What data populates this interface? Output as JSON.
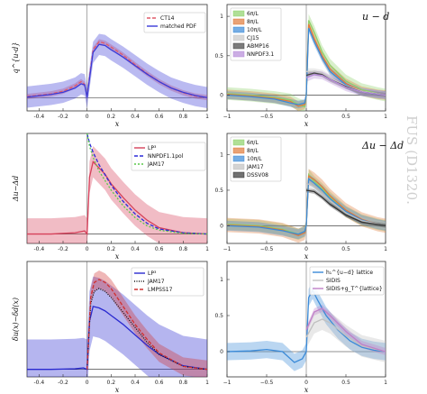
{
  "side_watermark": "FUS (D1320.",
  "chart_data": [
    {
      "type": "line",
      "ylabel": "q^{u-d}",
      "xlabel": "x",
      "xlim": [
        -0.5,
        1.0
      ],
      "ylim": [
        -0.25,
        1.75
      ],
      "xticks": [
        -0.4,
        -0.2,
        0,
        0.2,
        0.4,
        0.6,
        0.8,
        1
      ],
      "xtick_labels": [
        "-0.4",
        "-0.2",
        "0",
        "0.2",
        "0.4",
        "0.6",
        "0.8",
        "1"
      ],
      "legend_position": "top-right",
      "series": [
        {
          "name": "CT14",
          "color": "#e05a6a",
          "dash": "4,2",
          "x": [
            -0.5,
            -0.3,
            -0.2,
            -0.1,
            -0.05,
            -0.02,
            0.0,
            0.02,
            0.05,
            0.1,
            0.15,
            0.2,
            0.3,
            0.4,
            0.5,
            0.6,
            0.7,
            0.8,
            0.9,
            1.0
          ],
          "y": [
            0.02,
            0.07,
            0.12,
            0.22,
            0.3,
            0.25,
            0.0,
            0.4,
            0.9,
            1.05,
            1.02,
            0.95,
            0.8,
            0.62,
            0.45,
            0.3,
            0.18,
            0.09,
            0.03,
            0.0
          ],
          "band": 0.05
        },
        {
          "name": "matched PDF",
          "color": "#3a3ad8",
          "dash": "",
          "x": [
            -0.5,
            -0.3,
            -0.2,
            -0.1,
            -0.05,
            -0.02,
            0.0,
            0.02,
            0.05,
            0.1,
            0.15,
            0.2,
            0.3,
            0.4,
            0.5,
            0.6,
            0.7,
            0.8,
            0.9,
            1.0
          ],
          "y": [
            0.01,
            0.06,
            0.1,
            0.18,
            0.26,
            0.24,
            0.0,
            0.35,
            0.85,
            1.0,
            0.98,
            0.9,
            0.76,
            0.6,
            0.44,
            0.3,
            0.18,
            0.1,
            0.04,
            0.0
          ],
          "band": 0.2
        }
      ]
    },
    {
      "type": "line",
      "title": "u − d",
      "xlabel": "x",
      "xlim": [
        -1,
        1
      ],
      "ylim": [
        -0.2,
        1.15
      ],
      "xticks": [
        -1,
        -0.5,
        0,
        0.5,
        1
      ],
      "xtick_labels": [
        "−1",
        "−0.5",
        "0",
        "0.5",
        "1"
      ],
      "yticks": [
        0,
        0.5,
        1
      ],
      "ytick_labels": [
        "0",
        "0.5",
        "1"
      ],
      "legend_position": "top-left",
      "series": [
        {
          "name": "6π/L",
          "color": "#8fd16a",
          "x": [
            -1,
            -0.7,
            -0.4,
            -0.2,
            -0.1,
            -0.02,
            0.0,
            0.03,
            0.1,
            0.2,
            0.3,
            0.5,
            0.7,
            0.9,
            1.0
          ],
          "y": [
            0.02,
            0.0,
            -0.03,
            -0.06,
            -0.12,
            -0.15,
            0.0,
            0.95,
            0.8,
            0.55,
            0.38,
            0.18,
            0.07,
            0.02,
            0.0
          ],
          "band": 0.08
        },
        {
          "name": "8π/L",
          "color": "#e07a3a",
          "x": [
            -1,
            -0.7,
            -0.4,
            -0.2,
            -0.1,
            -0.02,
            0.0,
            0.03,
            0.1,
            0.2,
            0.3,
            0.5,
            0.7,
            0.9,
            1.0
          ],
          "y": [
            0.01,
            -0.01,
            -0.04,
            -0.08,
            -0.14,
            -0.12,
            0.0,
            0.9,
            0.72,
            0.5,
            0.33,
            0.15,
            0.05,
            0.01,
            0.0
          ],
          "band": 0.06
        },
        {
          "name": "10π/L",
          "color": "#3a8ad8",
          "x": [
            -1,
            -0.7,
            -0.4,
            -0.2,
            -0.1,
            -0.02,
            0.0,
            0.03,
            0.1,
            0.2,
            0.3,
            0.5,
            0.7,
            0.9,
            1.0
          ],
          "y": [
            0.0,
            -0.02,
            -0.05,
            -0.1,
            -0.12,
            -0.1,
            0.0,
            0.85,
            0.68,
            0.47,
            0.3,
            0.13,
            0.04,
            0.01,
            0.0
          ],
          "band": 0.05
        },
        {
          "name": "CJ15",
          "color": "#c8c8c8",
          "x": [
            0,
            0.1,
            0.2,
            0.3,
            0.5,
            0.7,
            1.0
          ],
          "y": [
            0.3,
            0.3,
            0.28,
            0.22,
            0.12,
            0.05,
            0.0
          ],
          "band": 0.04
        },
        {
          "name": "ABMP16",
          "color": "#444444",
          "x": [
            0,
            0.1,
            0.2,
            0.3,
            0.5,
            0.7,
            1.0
          ],
          "y": [
            0.25,
            0.28,
            0.26,
            0.2,
            0.11,
            0.04,
            0.0
          ],
          "band": 0.03
        },
        {
          "name": "NNPDF3.1",
          "color": "#b58ad8",
          "x": [
            0,
            0.1,
            0.2,
            0.3,
            0.5,
            0.7,
            1.0
          ],
          "y": [
            0.22,
            0.26,
            0.25,
            0.2,
            0.1,
            0.04,
            0.0
          ],
          "band": 0.05
        }
      ]
    },
    {
      "type": "line",
      "ylabel": "Δu−Δd",
      "xlabel": "x",
      "xlim": [
        -0.5,
        1.0
      ],
      "ylim": [
        -0.15,
        1.6
      ],
      "xticks": [
        -0.4,
        -0.2,
        0,
        0.2,
        0.4,
        0.6,
        0.8,
        1
      ],
      "xtick_labels": [
        "-0.4",
        "-0.2",
        "0",
        "0.2",
        "0.4",
        "0.6",
        "0.8",
        "1"
      ],
      "legend_position": "top-right",
      "series": [
        {
          "name": "LP³",
          "color": "#d6405a",
          "dash": "",
          "x": [
            -0.5,
            -0.3,
            -0.1,
            -0.02,
            0.0,
            0.02,
            0.05,
            0.1,
            0.15,
            0.2,
            0.3,
            0.4,
            0.5,
            0.6,
            0.8,
            1.0
          ],
          "y": [
            0.0,
            0.0,
            0.02,
            0.05,
            0.0,
            0.9,
            1.15,
            1.05,
            0.95,
            0.8,
            0.58,
            0.38,
            0.22,
            0.1,
            0.02,
            0.0
          ],
          "band": 0.25
        },
        {
          "name": "NNPDF1.1pol",
          "color": "#2a2ad8",
          "dash": "4,2",
          "x": [
            0.0,
            0.02,
            0.05,
            0.1,
            0.2,
            0.3,
            0.4,
            0.5,
            0.6,
            0.8,
            1.0
          ],
          "y": [
            1.6,
            1.45,
            1.3,
            1.1,
            0.78,
            0.52,
            0.32,
            0.17,
            0.08,
            0.02,
            0.0
          ],
          "band": 0
        },
        {
          "name": "JAM17",
          "color": "#5ac84a",
          "dash": "2,2",
          "x": [
            0.0,
            0.02,
            0.05,
            0.1,
            0.2,
            0.3,
            0.4,
            0.5,
            0.6,
            0.8,
            1.0
          ],
          "y": [
            1.6,
            1.4,
            1.22,
            1.0,
            0.7,
            0.45,
            0.26,
            0.13,
            0.06,
            0.01,
            0.0
          ],
          "band": 0
        }
      ]
    },
    {
      "type": "line",
      "title": "Δu − Δd",
      "xlabel": "x",
      "xlim": [
        -1,
        1
      ],
      "ylim": [
        -0.25,
        1.3
      ],
      "xticks": [
        -1,
        -0.5,
        0,
        0.5,
        1
      ],
      "xtick_labels": [
        "−1",
        "−0.5",
        "0",
        "0.5",
        "1"
      ],
      "yticks": [
        0,
        0.5,
        1
      ],
      "ytick_labels": [
        "0",
        "0.5",
        "1"
      ],
      "legend_position": "top-left",
      "series": [
        {
          "name": "6π/L",
          "color": "#8fd16a",
          "x": [
            -1,
            -0.6,
            -0.3,
            -0.1,
            -0.02,
            0.0,
            0.03,
            0.1,
            0.2,
            0.3,
            0.5,
            0.7,
            0.9,
            1.0
          ],
          "y": [
            0.02,
            0.0,
            -0.05,
            -0.12,
            -0.08,
            0.0,
            0.72,
            0.62,
            0.52,
            0.4,
            0.2,
            0.08,
            0.02,
            0.0
          ],
          "band": 0.08
        },
        {
          "name": "8π/L",
          "color": "#e07a3a",
          "x": [
            -1,
            -0.6,
            -0.3,
            -0.1,
            -0.02,
            0.0,
            0.03,
            0.1,
            0.2,
            0.3,
            0.5,
            0.7,
            0.9,
            1.0
          ],
          "y": [
            0.01,
            -0.01,
            -0.06,
            -0.14,
            -0.1,
            0.0,
            0.7,
            0.65,
            0.55,
            0.42,
            0.22,
            0.09,
            0.02,
            0.0
          ],
          "band": 0.1
        },
        {
          "name": "10π/L",
          "color": "#3a8ad8",
          "x": [
            -1,
            -0.6,
            -0.3,
            -0.1,
            -0.02,
            0.0,
            0.03,
            0.1,
            0.2,
            0.3,
            0.5,
            0.7,
            0.9,
            1.0
          ],
          "y": [
            0.0,
            -0.02,
            -0.07,
            -0.12,
            -0.08,
            0.0,
            0.66,
            0.6,
            0.5,
            0.38,
            0.2,
            0.08,
            0.02,
            0.0
          ],
          "band": 0.07
        },
        {
          "name": "JAM17",
          "color": "#c0c0c0",
          "x": [
            0,
            0.1,
            0.2,
            0.3,
            0.5,
            0.7,
            1.0
          ],
          "y": [
            0.6,
            0.55,
            0.45,
            0.35,
            0.18,
            0.07,
            0.0
          ],
          "band": 0.05
        },
        {
          "name": "DSSV08",
          "color": "#333333",
          "x": [
            0,
            0.1,
            0.2,
            0.3,
            0.5,
            0.7,
            1.0
          ],
          "y": [
            0.5,
            0.48,
            0.4,
            0.3,
            0.15,
            0.05,
            0.0
          ],
          "band": 0.03
        }
      ]
    },
    {
      "type": "line",
      "ylabel": "δu(x)−δd(x)",
      "xlabel": "x",
      "xlim": [
        -0.5,
        1.0
      ],
      "ylim": [
        -0.25,
        3.6
      ],
      "xticks": [
        -0.4,
        -0.2,
        0,
        0.2,
        0.4,
        0.6,
        0.8,
        1
      ],
      "xtick_labels": [
        "-0.4",
        "-0.2",
        "0",
        "0.2",
        "0.4",
        "0.6",
        "0.8",
        "1"
      ],
      "legend_position": "top-right",
      "series": [
        {
          "name": "LP³",
          "color": "#2a2ad0",
          "dash": "",
          "x": [
            -0.5,
            -0.3,
            -0.1,
            -0.03,
            0.0,
            0.02,
            0.05,
            0.1,
            0.15,
            0.2,
            0.3,
            0.4,
            0.5,
            0.6,
            0.8,
            1.0
          ],
          "y": [
            0.0,
            0.0,
            0.02,
            0.05,
            0.0,
            1.6,
            2.1,
            2.05,
            1.95,
            1.8,
            1.5,
            1.15,
            0.8,
            0.5,
            0.12,
            0.0
          ],
          "band": 1.0
        },
        {
          "name": "JAM17",
          "color": "#111111",
          "dash": "1,1.5",
          "x": [
            0.0,
            0.03,
            0.06,
            0.1,
            0.15,
            0.2,
            0.3,
            0.4,
            0.5,
            0.6,
            0.8,
            1.0
          ],
          "y": [
            0.0,
            2.2,
            2.6,
            2.7,
            2.6,
            2.4,
            1.9,
            1.4,
            0.9,
            0.5,
            0.1,
            0.0
          ],
          "band": 0
        },
        {
          "name": "LMPSS17",
          "color": "#d03030",
          "dash": "4,2",
          "x": [
            0.0,
            0.03,
            0.06,
            0.1,
            0.15,
            0.2,
            0.3,
            0.4,
            0.5,
            0.6,
            0.8,
            1.0
          ],
          "y": [
            0.0,
            2.4,
            2.9,
            3.0,
            2.9,
            2.7,
            2.1,
            1.5,
            1.0,
            0.55,
            0.1,
            0.0
          ],
          "band": 0.3
        }
      ]
    },
    {
      "type": "line",
      "xlabel": "x",
      "xlim": [
        -1,
        1
      ],
      "ylim": [
        -0.35,
        1.25
      ],
      "xticks": [
        -1,
        -0.5,
        0,
        0.5,
        1
      ],
      "xtick_labels": [
        "−1",
        "−0.5",
        "0",
        "0.5",
        "1"
      ],
      "yticks": [
        0,
        0.5,
        1
      ],
      "ytick_labels": [
        "0",
        "0.5",
        "1"
      ],
      "legend_position": "top-right",
      "series": [
        {
          "name": "h₁^{u−d} lattice",
          "color": "#3a8ad8",
          "x": [
            -1,
            -0.7,
            -0.5,
            -0.3,
            -0.15,
            -0.05,
            0.0,
            0.03,
            0.08,
            0.15,
            0.25,
            0.4,
            0.55,
            0.7,
            0.85,
            1.0
          ],
          "y": [
            0.0,
            0.01,
            0.03,
            0.0,
            -0.15,
            -0.1,
            0.0,
            0.75,
            0.85,
            0.7,
            0.5,
            0.3,
            0.15,
            0.06,
            0.02,
            0.0
          ],
          "band": 0.12
        },
        {
          "name": "SIDIS",
          "color": "#c0c0c0",
          "x": [
            0,
            0.1,
            0.2,
            0.3,
            0.5,
            0.7,
            1.0
          ],
          "y": [
            0.2,
            0.4,
            0.45,
            0.4,
            0.22,
            0.08,
            0.0
          ],
          "band": 0.15
        },
        {
          "name": "SIDIS+g_T^{lattice}",
          "color": "#c080c8",
          "x": [
            0,
            0.1,
            0.2,
            0.3,
            0.5,
            0.7,
            1.0
          ],
          "y": [
            0.3,
            0.55,
            0.6,
            0.5,
            0.28,
            0.1,
            0.0
          ],
          "band": 0.05
        }
      ]
    }
  ]
}
